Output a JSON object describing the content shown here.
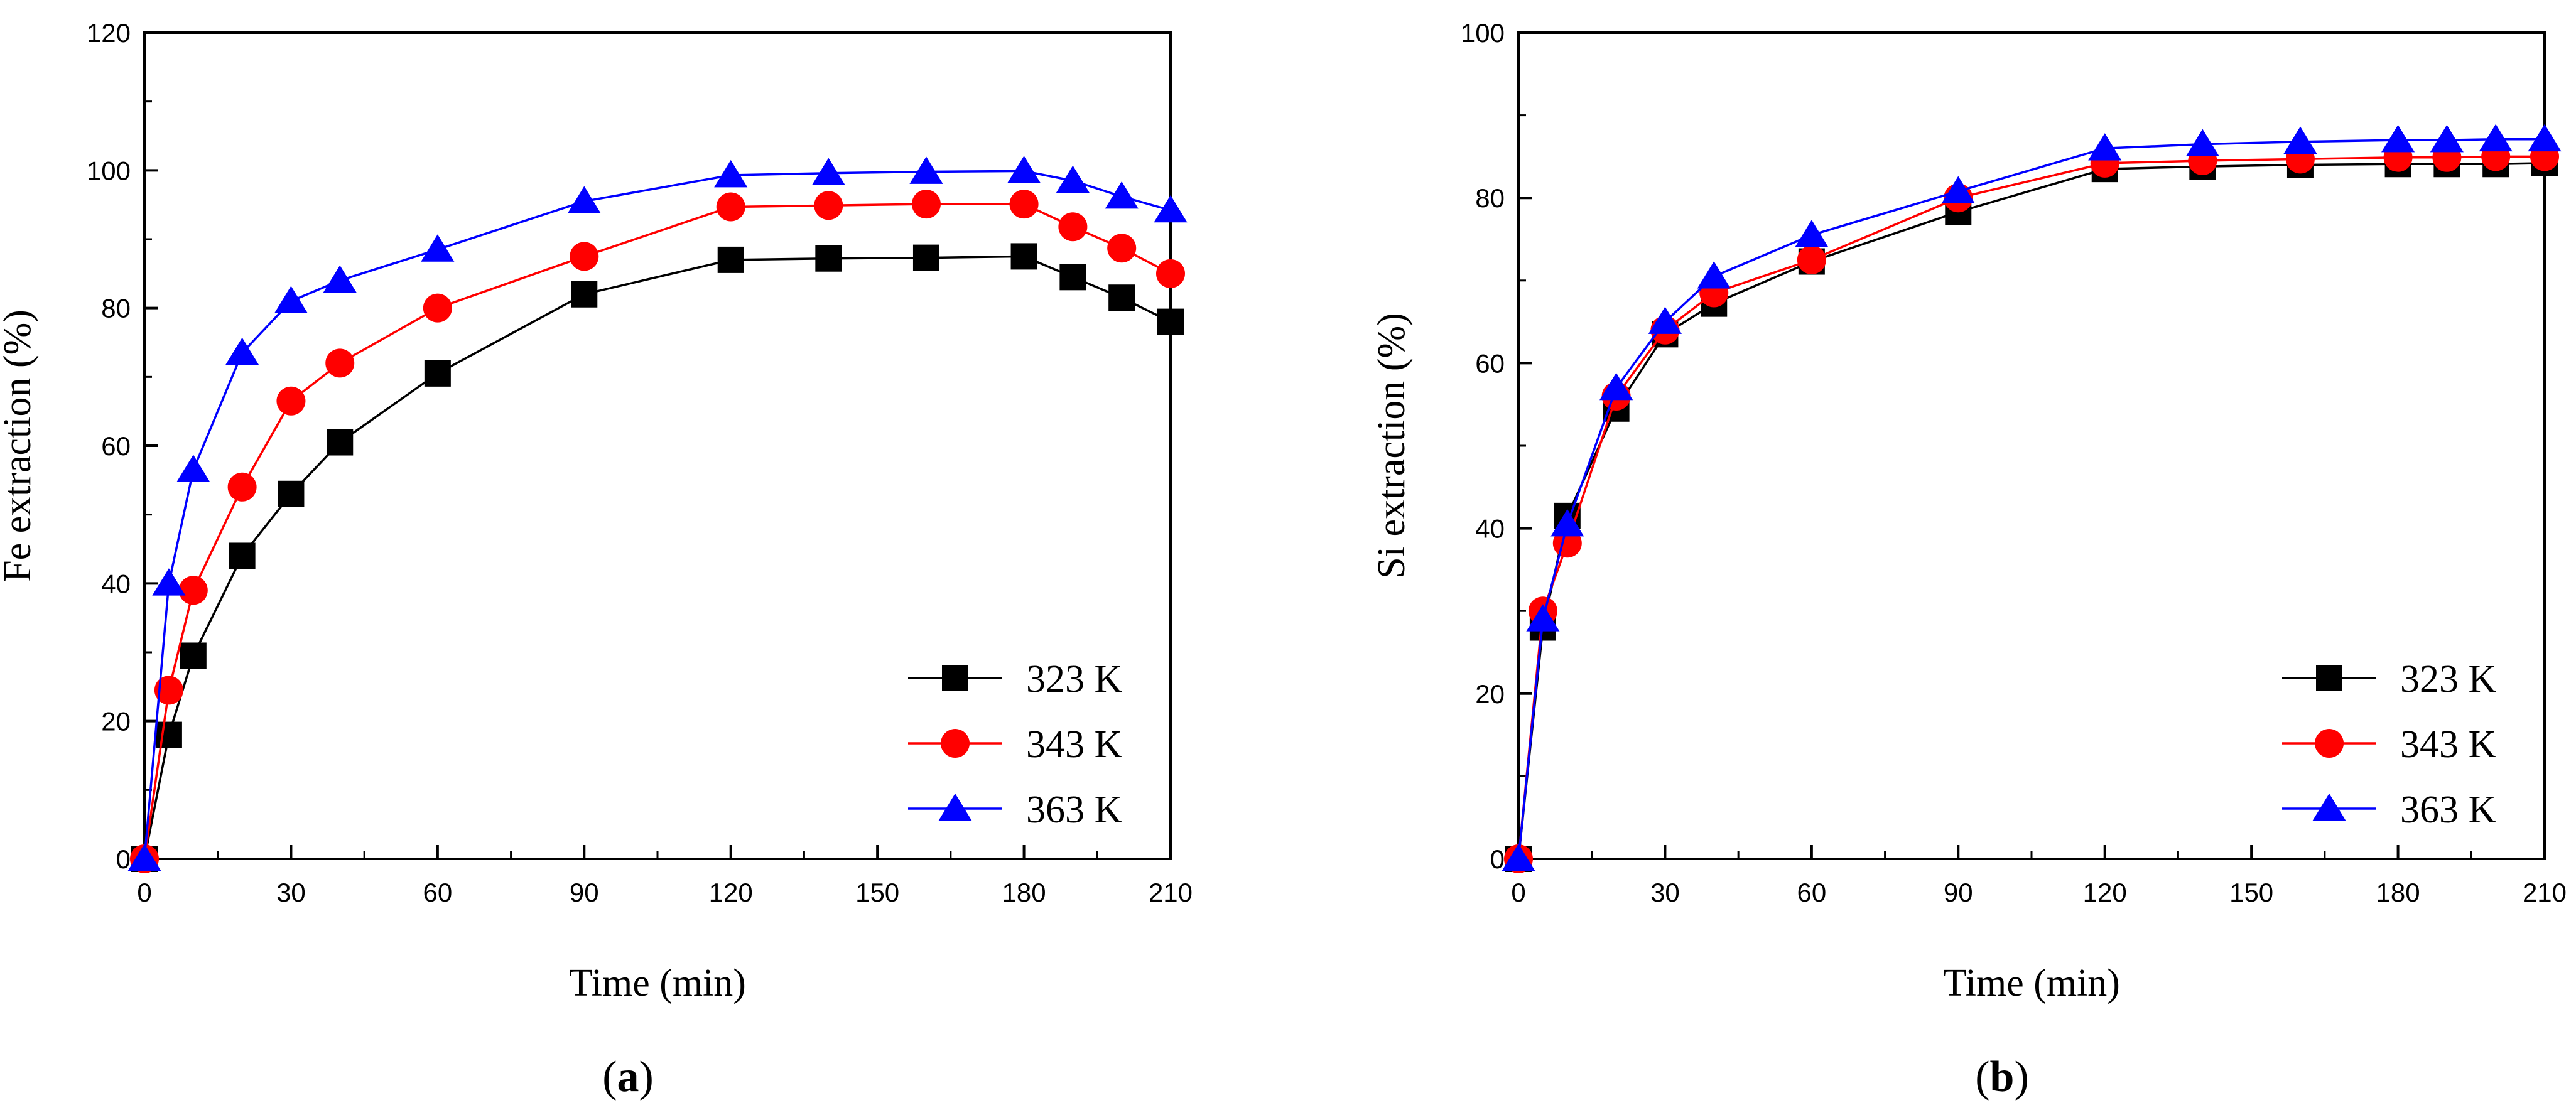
{
  "chart_data": [
    {
      "type": "line",
      "panel_label": {
        "open": "(",
        "letter": "a",
        "close": ")"
      },
      "xlabel": "Time (min)",
      "ylabel": "Fe extraction (%)",
      "xlim": [
        0,
        210
      ],
      "ylim": [
        0,
        120
      ],
      "xticks": [
        0,
        30,
        60,
        90,
        120,
        150,
        180,
        210
      ],
      "yticks": [
        0,
        20,
        40,
        60,
        80,
        100,
        120
      ],
      "legend_position": "bottom-right",
      "series": [
        {
          "name": "323 K",
          "color": "#000000",
          "marker": "square",
          "x": [
            0,
            5,
            10,
            20,
            30,
            40,
            60,
            90,
            120,
            140,
            160,
            180,
            190,
            200,
            210
          ],
          "y": [
            0,
            18,
            29.5,
            44,
            53,
            60.5,
            70.5,
            82,
            87,
            87.2,
            87.3,
            87.5,
            84.5,
            81.5,
            78
          ]
        },
        {
          "name": "343 K",
          "color": "#ff0000",
          "marker": "circle",
          "x": [
            0,
            5,
            10,
            20,
            30,
            40,
            60,
            90,
            120,
            140,
            160,
            180,
            190,
            200,
            210
          ],
          "y": [
            0,
            24.5,
            39,
            54,
            66.5,
            72,
            80,
            87.5,
            94.7,
            94.9,
            95.1,
            95.1,
            91.8,
            88.7,
            85
          ]
        },
        {
          "name": "363 K",
          "color": "#0000ff",
          "marker": "triangle",
          "x": [
            0,
            5,
            10,
            20,
            30,
            40,
            60,
            90,
            120,
            140,
            160,
            180,
            190,
            200,
            210
          ],
          "y": [
            0,
            40,
            56.5,
            73.5,
            81,
            84,
            88.5,
            95.5,
            99.3,
            99.6,
            99.8,
            99.9,
            98.5,
            96.2,
            94.2
          ]
        }
      ]
    },
    {
      "type": "line",
      "panel_label": {
        "open": "(",
        "letter": "b",
        "close": ")"
      },
      "xlabel": "Time (min)",
      "ylabel": "Si extraction (%)",
      "xlim": [
        0,
        210
      ],
      "ylim": [
        0,
        100
      ],
      "xticks": [
        0,
        30,
        60,
        90,
        120,
        150,
        180,
        210
      ],
      "yticks": [
        0,
        20,
        40,
        60,
        80,
        100
      ],
      "legend_position": "bottom-right",
      "series": [
        {
          "name": "323 K",
          "color": "#000000",
          "marker": "square",
          "x": [
            0,
            5,
            10,
            20,
            30,
            40,
            60,
            90,
            120,
            140,
            160,
            180,
            190,
            200,
            210
          ],
          "y": [
            0,
            28,
            41.5,
            54.5,
            63.5,
            67.2,
            72.3,
            78.3,
            83.5,
            83.8,
            84,
            84.1,
            84.1,
            84.1,
            84.2
          ]
        },
        {
          "name": "343 K",
          "color": "#ff0000",
          "marker": "circle",
          "x": [
            0,
            5,
            10,
            20,
            30,
            40,
            60,
            90,
            120,
            140,
            160,
            180,
            190,
            200,
            210
          ],
          "y": [
            0,
            30,
            38.2,
            56,
            64,
            68.5,
            72.5,
            80,
            84.2,
            84.5,
            84.7,
            84.9,
            84.9,
            85,
            85
          ]
        },
        {
          "name": "363 K",
          "color": "#0000ff",
          "marker": "triangle",
          "x": [
            0,
            5,
            10,
            20,
            30,
            40,
            60,
            90,
            120,
            140,
            160,
            180,
            190,
            200,
            210
          ],
          "y": [
            0,
            29,
            40.5,
            57,
            65,
            70.5,
            75.5,
            80.8,
            86,
            86.5,
            86.8,
            87,
            87,
            87.1,
            87.1
          ]
        }
      ]
    }
  ]
}
